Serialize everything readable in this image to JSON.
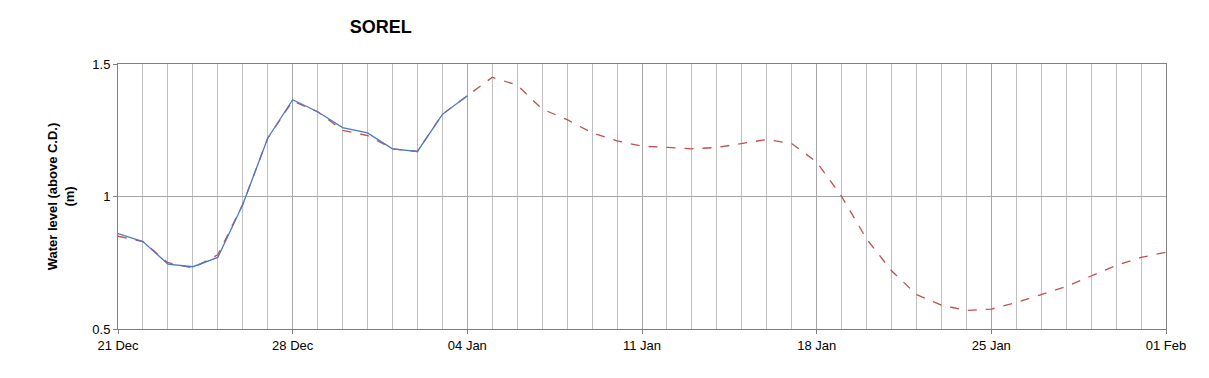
{
  "chart_data": {
    "type": "line",
    "title": "SOREL",
    "y_label": [
      "Water level (above C.D.)",
      "(m)"
    ],
    "categories": [
      "21 Dec",
      null,
      null,
      null,
      null,
      null,
      null,
      "28 Dec",
      null,
      null,
      null,
      null,
      null,
      null,
      "04 Jan",
      null,
      null,
      null,
      null,
      null,
      null,
      "11 Jan",
      null,
      null,
      null,
      null,
      null,
      null,
      "18 Jan",
      null,
      null,
      null,
      null,
      null,
      null,
      "25 Jan",
      null,
      null,
      null,
      null,
      null,
      null,
      "01 Feb"
    ],
    "series": [
      {
        "color": "#c0504d",
        "line_style": "dash",
        "values": [
          0.85,
          0.83,
          0.75,
          0.73,
          0.78,
          0.97,
          1.22,
          1.36,
          1.32,
          1.25,
          1.23,
          1.18,
          1.17,
          1.31,
          1.38,
          1.45,
          1.42,
          1.33,
          1.29,
          1.24,
          1.21,
          1.19,
          1.185,
          1.18,
          1.185,
          1.2,
          1.215,
          1.2,
          1.13,
          1.0,
          0.84,
          0.72,
          0.63,
          0.59,
          0.57,
          0.575,
          0.6,
          0.63,
          0.66,
          0.7,
          0.74,
          0.77,
          0.79
        ]
      },
      {
        "color": "#4f78c4",
        "line_style": "solid",
        "values": [
          0.86,
          0.83,
          0.745,
          0.735,
          0.77,
          0.97,
          1.22,
          1.365,
          1.32,
          1.26,
          1.24,
          1.18,
          1.17,
          1.31,
          1.38,
          null,
          null,
          null,
          null,
          null,
          null,
          null,
          null,
          null,
          null,
          null,
          null,
          null,
          null,
          null,
          null,
          null,
          null,
          null,
          null,
          null,
          null,
          null,
          null,
          null,
          null,
          null,
          null
        ]
      }
    ],
    "ylim": [
      0.5,
      1.5
    ],
    "yticks": [
      0.5,
      1,
      1.5
    ],
    "grid": true
  }
}
